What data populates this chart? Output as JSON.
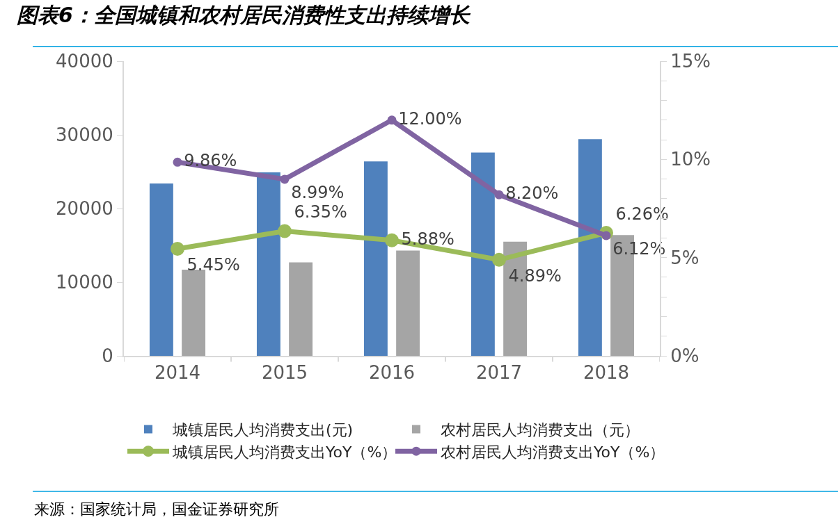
{
  "chart_data": {
    "type": "bar",
    "title": "图表6：全国城镇和农村居民消费性支出持续增长",
    "categories": [
      "2014",
      "2015",
      "2016",
      "2017",
      "2018"
    ],
    "series": [
      {
        "name": "城镇居民人均消费支出(元)",
        "color": "#4f81bd",
        "values": [
          23400,
          24900,
          26400,
          27600,
          29400
        ]
      },
      {
        "name": "农村居民人均消费支出（元）",
        "color": "#a5a5a5",
        "values": [
          11700,
          12700,
          14300,
          15500,
          16400
        ]
      },
      {
        "name": "城镇居民人均消费支出YoY（%）",
        "type": "line",
        "axis": "y2",
        "color": "#9bbb59",
        "marker": "circle",
        "values": [
          5.45,
          6.35,
          5.88,
          4.89,
          6.26
        ],
        "value_labels": [
          "5.45%",
          "6.35%",
          "5.88%",
          "4.89%",
          "6.26%"
        ]
      },
      {
        "name": "农村居民人均消费支出YoY（%）",
        "type": "line",
        "axis": "y2",
        "color": "#8064a2",
        "marker": "circle",
        "values": [
          9.86,
          8.99,
          12.0,
          8.2,
          6.12
        ],
        "value_labels": [
          "9.86%",
          "8.99%",
          "12.00%",
          "8.20%",
          "6.12%"
        ]
      }
    ],
    "ylim": [
      0,
      40000
    ],
    "yticks": [
      0,
      10000,
      20000,
      30000,
      40000
    ],
    "y2lim": [
      0,
      15
    ],
    "y2ticks": [
      {
        "value": 0,
        "label": "0%"
      },
      {
        "value": 1,
        "label": null
      },
      {
        "value": 2,
        "label": null
      },
      {
        "value": 3,
        "label": null
      },
      {
        "value": 4,
        "label": null
      },
      {
        "value": 5,
        "label": "5%"
      },
      {
        "value": 6,
        "label": null
      },
      {
        "value": 7,
        "label": null
      },
      {
        "value": 8,
        "label": null
      },
      {
        "value": 9,
        "label": null
      },
      {
        "value": 10,
        "label": "10%"
      },
      {
        "value": 11,
        "label": null
      },
      {
        "value": 12,
        "label": null
      },
      {
        "value": 13,
        "label": null
      },
      {
        "value": 14,
        "label": null
      },
      {
        "value": 15,
        "label": "15%"
      }
    ],
    "legend": "bottom",
    "annotations": [
      "来源：国家统计局，国金证券研究所"
    ]
  }
}
